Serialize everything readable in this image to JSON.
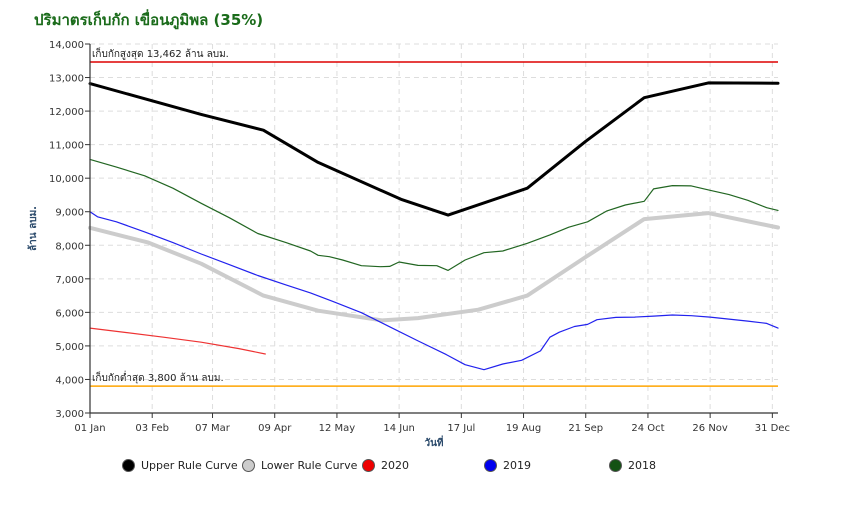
{
  "title": "ปริมาตรเก็บกัก เขื่อนภูมิพล (35%)",
  "chart_data": {
    "type": "line",
    "title": "ปริมาตรเก็บกัก เขื่อนภูมิพล (35%)",
    "xlabel": "วันที่",
    "ylabel": "ล้าน ลบม.",
    "ylim": [
      3000,
      14000
    ],
    "yticks": [
      3000,
      4000,
      5000,
      6000,
      7000,
      8000,
      9000,
      10000,
      11000,
      12000,
      13000,
      14000
    ],
    "ytick_labels": [
      "3,000",
      "4,000",
      "5,000",
      "6,000",
      "7,000",
      "8,000",
      "9,000",
      "10,000",
      "11,000",
      "12,000",
      "13,000",
      "14,000"
    ],
    "xlim": [
      1,
      366
    ],
    "xticks": [
      1,
      34,
      66,
      99,
      132,
      165,
      198,
      231,
      264,
      297,
      330,
      363
    ],
    "xtick_labels": [
      "01 Jan",
      "03 Feb",
      "07 Mar",
      "09 Apr",
      "12 May",
      "14 Jun",
      "17 Jul",
      "19 Aug",
      "21 Sep",
      "24 Oct",
      "26 Nov",
      "31 Dec"
    ],
    "grid": true,
    "legend_position": "bottom",
    "reference_lines": [
      {
        "label": "เก็บกักสูงสุด 13,462 ล้าน ลบม.",
        "value": 13462,
        "color": "#dd0000"
      },
      {
        "label": "เก็บกักต่ำสุด 3,800 ล้าน ลบม.",
        "value": 3800,
        "color": "#ffa500"
      }
    ],
    "series": [
      {
        "name": "Upper Rule Curve",
        "color": "#000000",
        "legend_color": "#000000",
        "width": 3,
        "x": [
          1,
          60,
          93,
          122,
          166,
          191,
          233,
          264,
          295,
          329,
          366
        ],
        "y": [
          12820,
          11900,
          11430,
          10470,
          9370,
          8900,
          9700,
          11100,
          12400,
          12840,
          12830
        ]
      },
      {
        "name": "Lower Rule Curve",
        "color": "#cccccc",
        "legend_color": "#cccccc",
        "width": 4,
        "x": [
          1,
          32,
          60,
          93,
          122,
          156,
          175,
          207,
          233,
          264,
          295,
          329,
          366
        ],
        "y": [
          8520,
          8080,
          7450,
          6500,
          6050,
          5760,
          5830,
          6080,
          6500,
          7650,
          8780,
          8960,
          8530
        ]
      },
      {
        "name": "2020",
        "color": "#ee3333",
        "legend_color": "#ee0000",
        "width": 1.2,
        "x": [
          1,
          20,
          40,
          60,
          80,
          94
        ],
        "y": [
          5530,
          5400,
          5260,
          5110,
          4920,
          4760
        ]
      },
      {
        "name": "2019",
        "color": "#2222ee",
        "legend_color": "#0000ee",
        "width": 1.2,
        "x": [
          1,
          5,
          15,
          30,
          45,
          60,
          75,
          90,
          105,
          118,
          130,
          145,
          160,
          175,
          190,
          200,
          210,
          220,
          230,
          240,
          245,
          250,
          258,
          265,
          270,
          280,
          290,
          300,
          310,
          320,
          330,
          340,
          350,
          360,
          366
        ],
        "y": [
          9000,
          8850,
          8700,
          8400,
          8080,
          7740,
          7420,
          7100,
          6820,
          6580,
          6320,
          5990,
          5570,
          5150,
          4740,
          4440,
          4290,
          4460,
          4570,
          4850,
          5260,
          5410,
          5580,
          5640,
          5780,
          5850,
          5860,
          5890,
          5920,
          5900,
          5860,
          5800,
          5740,
          5670,
          5530
        ]
      },
      {
        "name": "2018",
        "color": "#226622",
        "legend_color": "#145214",
        "width": 1.2,
        "x": [
          1,
          15,
          30,
          45,
          60,
          75,
          90,
          105,
          118,
          122,
          128,
          135,
          145,
          155,
          160,
          165,
          175,
          185,
          191,
          200,
          210,
          220,
          233,
          245,
          255,
          265,
          275,
          285,
          295,
          300,
          310,
          320,
          330,
          340,
          350,
          360,
          366
        ],
        "y": [
          10560,
          10330,
          10070,
          9700,
          9250,
          8820,
          8350,
          8080,
          7830,
          7700,
          7660,
          7560,
          7390,
          7360,
          7370,
          7500,
          7400,
          7390,
          7250,
          7560,
          7780,
          7830,
          8060,
          8310,
          8540,
          8700,
          9020,
          9200,
          9310,
          9680,
          9780,
          9770,
          9640,
          9510,
          9340,
          9120,
          9040
        ]
      }
    ]
  }
}
